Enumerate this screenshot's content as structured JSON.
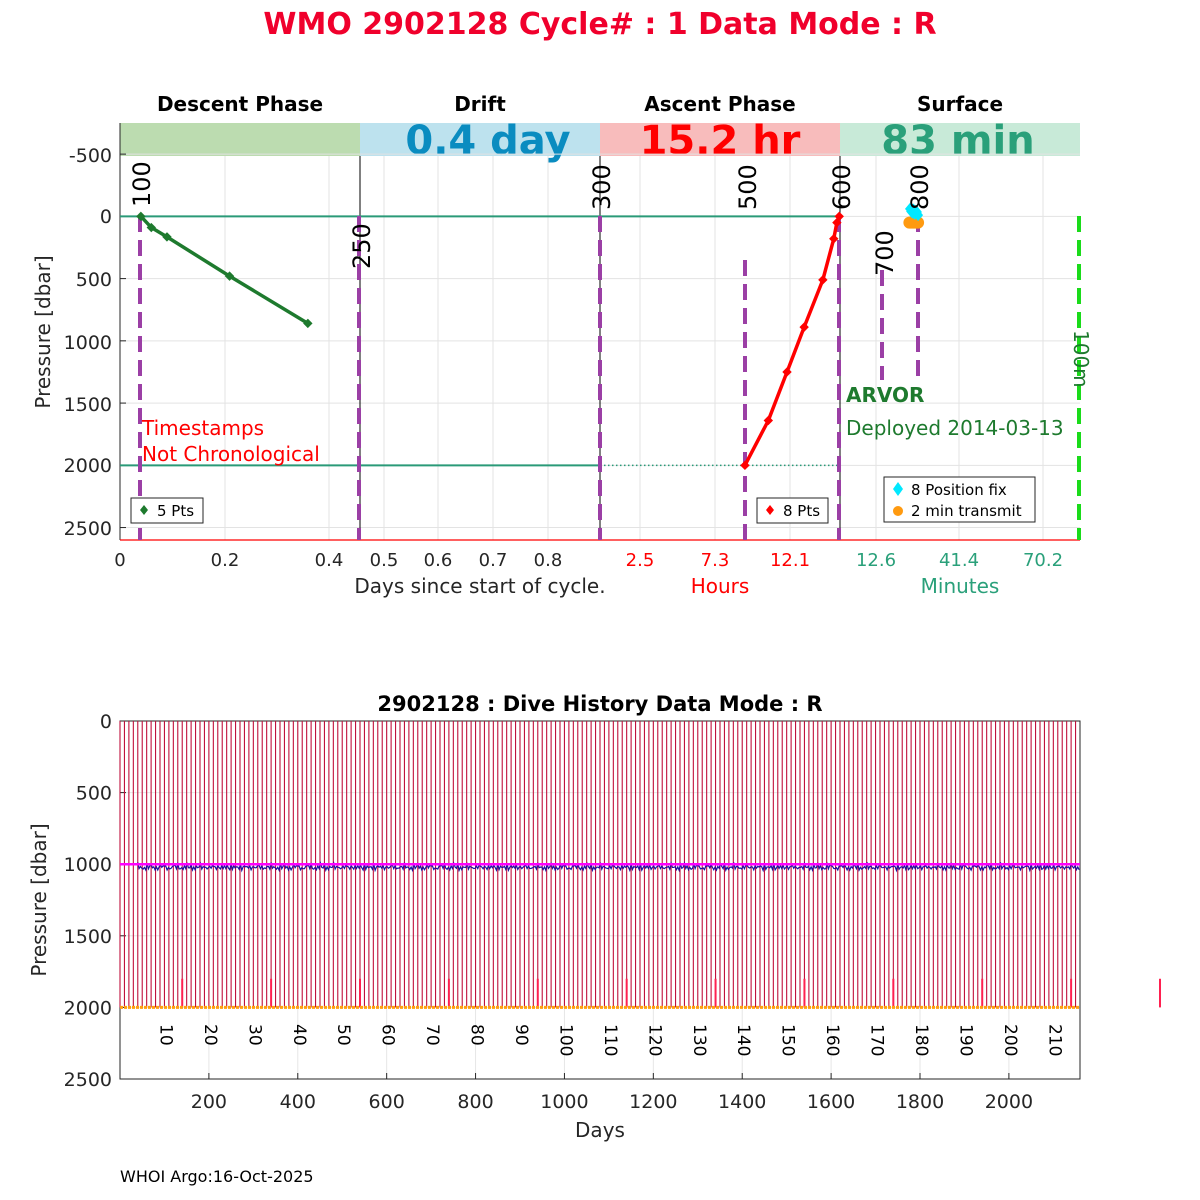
{
  "main_title": "WMO 2902128   Cycle# : 1   Data Mode : R",
  "colors": {
    "title": "#f0002c",
    "descent": "#1e7a2e",
    "descent_band": "#bcdcb0",
    "drift_band": "#bde2ee",
    "drift_text": "#0a8cc0",
    "ascent_band": "#f8bcbc",
    "ascent": "#ff0000",
    "surface_band": "#c8ead8",
    "surface_text": "#2aa07a",
    "marker": "#9b3fa5",
    "position_fix": "#00e8ff",
    "transmit": "#ff9a10",
    "hundred_line": "#1adb1a",
    "history_bar": "#c0103c",
    "drift_line": "#ff00ff",
    "history_park": "#1a10a0",
    "history_profile": "#ffa010"
  },
  "profile": {
    "phases": {
      "descent": "Descent Phase",
      "drift": "Drift",
      "ascent": "Ascent Phase",
      "surface": "Surface"
    },
    "durations": {
      "drift": "0.4 day",
      "ascent": "15.2 hr",
      "surface": "83 min"
    },
    "ylabel": "Pressure [dbar]",
    "yticks": [
      "-500",
      "0",
      "500",
      "1000",
      "1500",
      "2000",
      "2500"
    ],
    "xlabels": {
      "days": "Days since start of cycle.",
      "hours": "Hours",
      "minutes": "Minutes"
    },
    "xticks_descent": [
      "0",
      "0.2",
      "0.4"
    ],
    "xticks_drift": [
      "0.5",
      "0.6",
      "0.7",
      "0.8"
    ],
    "xticks_ascent": [
      "2.5",
      "7.3",
      "12.1"
    ],
    "xticks_surface": [
      "12.6",
      "41.4",
      "70.2"
    ],
    "code_labels": {
      "c100": "100",
      "c250": "250",
      "c300": "300",
      "c500": "500",
      "c600": "600",
      "c700": "700",
      "c800": "800",
      "c100m": "100m"
    },
    "warning_line1": "Timestamps",
    "warning_line2": "Not Chronological",
    "float_type": "ARVOR",
    "deployed": "Deployed 2014-03-13",
    "legend_descent": "5 Pts",
    "legend_ascent": "8 Pts",
    "legend_position": "8 Position fix",
    "legend_transmit": "2 min transmit"
  },
  "chart_data": [
    {
      "type": "line",
      "panel": "descent",
      "x": [
        0.04,
        0.06,
        0.09,
        0.21,
        0.36
      ],
      "y": [
        0,
        90,
        165,
        480,
        860
      ],
      "xlim": [
        0,
        0.46
      ],
      "ylim": [
        2600,
        -750
      ]
    },
    {
      "type": "line",
      "panel": "ascent",
      "x": [
        9.3,
        10.8,
        12.0,
        13.1,
        14.3,
        15.0,
        15.2,
        15.35
      ],
      "y": [
        2000,
        1640,
        1250,
        890,
        510,
        180,
        50,
        0
      ],
      "xlim": [
        0,
        15.4
      ],
      "ylim": [
        2600,
        -750
      ]
    },
    {
      "type": "scatter",
      "panel": "surface",
      "series": [
        {
          "name": "8 Position fix",
          "x": [
            24.2,
            24.6,
            25.0,
            25.4,
            25.8,
            26.2,
            26.6,
            27.0
          ],
          "y": [
            -60,
            -40,
            -30,
            -55,
            -20,
            -45,
            -35,
            -10
          ]
        },
        {
          "name": "2 min transmit",
          "x": [
            24.0,
            24.5,
            25.0,
            25.5,
            26.0,
            26.5,
            27.0
          ],
          "y": [
            50,
            50,
            50,
            50,
            50,
            50,
            50
          ]
        }
      ],
      "xlim": [
        0,
        83
      ],
      "ylim": [
        2600,
        -750
      ]
    },
    {
      "type": "bar",
      "title": "2902128 : Dive History      Data Mode : R",
      "xlabel": "Days",
      "ylabel": "Pressure [dbar]",
      "xlim": [
        0,
        2160
      ],
      "ylim": [
        2500,
        0
      ],
      "xticks": [
        "200",
        "400",
        "600",
        "800",
        "1000",
        "1200",
        "1400",
        "1600",
        "1800",
        "2000"
      ],
      "yticks": [
        "0",
        "500",
        "1000",
        "1500",
        "2000",
        "2500"
      ],
      "cycle_labels": [
        "10",
        "20",
        "30",
        "40",
        "50",
        "60",
        "70",
        "80",
        "90",
        "100",
        "110",
        "120",
        "130",
        "140",
        "150",
        "160",
        "170",
        "180",
        "190",
        "200",
        "210"
      ],
      "cycle_count": 216,
      "cycle_interval_days": 10,
      "profile_depth": 2000,
      "drift_pressure": 1000
    }
  ],
  "footer": "WHOI Argo:16-Oct-2025"
}
